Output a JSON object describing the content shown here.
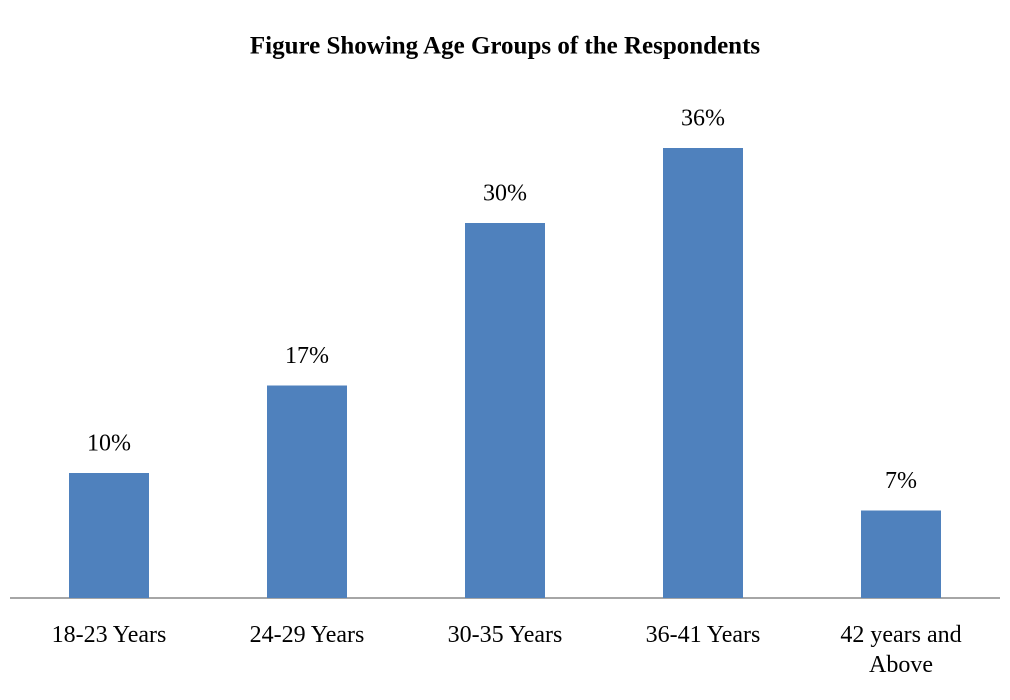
{
  "chart_data": {
    "type": "bar",
    "title": "Figure Showing Age Groups of the Respondents",
    "categories": [
      "18-23 Years",
      "24-29 Years",
      "30-35 Years",
      "36-41 Years",
      "42 years and Above"
    ],
    "values": [
      10,
      17,
      30,
      36,
      7
    ],
    "value_labels": [
      "10%",
      "17%",
      "30%",
      "36%",
      "7%"
    ],
    "color": "#4f81bd"
  }
}
